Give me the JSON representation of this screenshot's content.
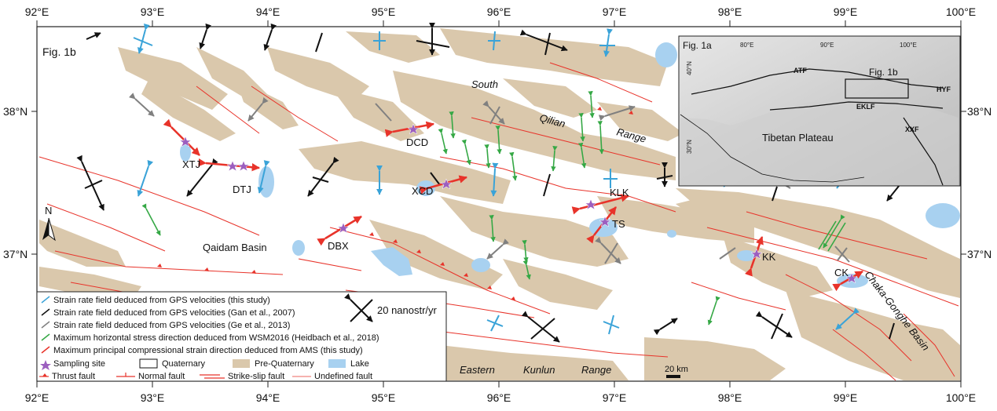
{
  "map": {
    "fig_label": "Fig. 1b",
    "background_colors": {
      "quaternary": "#ffffff",
      "pre_quaternary": "#dac8ac",
      "lake": "#a8d1f0",
      "fault": "#e8332a"
    },
    "x_ticks": [
      "92°E",
      "93°E",
      "94°E",
      "95°E",
      "96°E",
      "97°E",
      "98°E",
      "99°E",
      "100°E"
    ],
    "y_ticks": [
      "38°N",
      "37°N"
    ],
    "north_label": "N",
    "sites": [
      "XTJ",
      "DTJ",
      "DCD",
      "XCD",
      "DBX",
      "KLK",
      "TS",
      "KK",
      "CK"
    ],
    "regions": {
      "qaidam": "Qaidam Basin",
      "south": "South",
      "qilian": "Qilian",
      "range_qilian": "Range",
      "eastern": "Eastern",
      "kunlun": "Kunlun",
      "range_kunlun": "Range",
      "chaka": "Chaka-Gonghe Basin"
    },
    "scale_bar": "20 km"
  },
  "inset": {
    "label": "Fig. 1a",
    "x_ticks": [
      "80°E",
      "90°E",
      "100°E"
    ],
    "y_ticks": [
      "40°N",
      "30°N"
    ],
    "box_label": "Fig. 1b",
    "faults": [
      "ATF",
      "HYF",
      "EKLF",
      "XXF"
    ],
    "plateau": "Tibetan  Plateau"
  },
  "legend": {
    "items": [
      {
        "text": "Strain rate field deduced from GPS velocities (this study)",
        "color": "#3aa3d8",
        "icon": "strain-cross-icon"
      },
      {
        "text": "Strain rate field deduced from GPS velocities (Gan et al., 2007)",
        "color": "#111111",
        "icon": "strain-cross-icon"
      },
      {
        "text": "Strain rate field deduced from GPS velocities (Ge et al., 2013)",
        "color": "#808080",
        "icon": "strain-cross-icon"
      },
      {
        "text": "Maximum horizontal stress direction deduced from WSM2016 (Heidbach et al., 2018)",
        "color": "#35a845",
        "icon": "stress-arrow-icon"
      },
      {
        "text": "Maximum principal compressional strain direction deduced from AMS (this study)",
        "color": "#e8332a",
        "icon": "ams-arrow-icon"
      }
    ],
    "scale_label": "20 nanostr/yr",
    "row2": {
      "sampling": "Sampling site",
      "quaternary": "Quaternary",
      "pre_quaternary": "Pre-Quaternary",
      "lake": "Lake"
    },
    "row3": {
      "thrust": "Thrust fault",
      "normal": "Normal fault",
      "strike_slip": "Strike-slip fault",
      "undefined": "Undefined fault"
    }
  }
}
